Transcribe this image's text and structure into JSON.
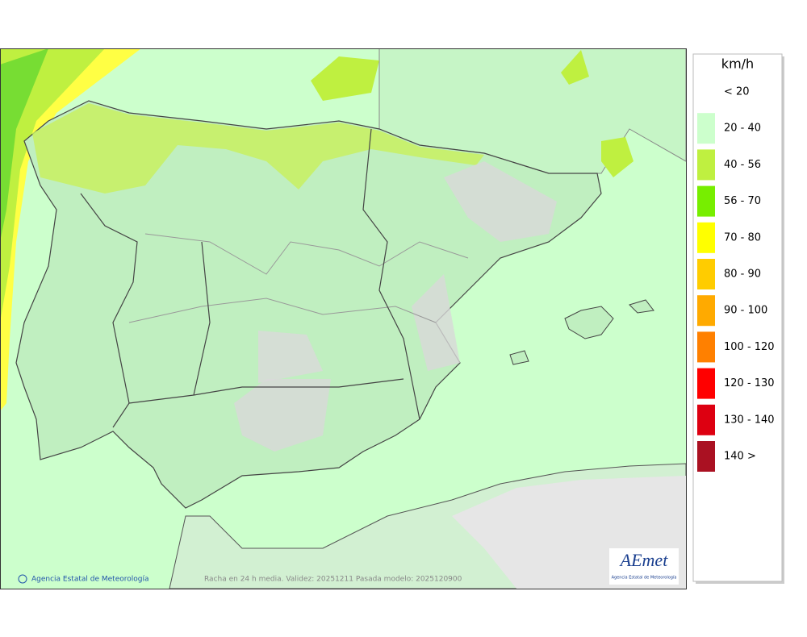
{
  "legend": {
    "unit": "km/h",
    "classes": [
      {
        "label": "< 20",
        "color": "#ffffff"
      },
      {
        "label": "20 - 40",
        "color": "#ccffcc"
      },
      {
        "label": "40 - 56",
        "color": "#bff040"
      },
      {
        "label": "56 - 70",
        "color": "#77ee00"
      },
      {
        "label": "70 - 80",
        "color": "#ffff00"
      },
      {
        "label": "80 - 90",
        "color": "#ffcc00"
      },
      {
        "label": "90 - 100",
        "color": "#ffaa00"
      },
      {
        "label": "100 - 120",
        "color": "#ff8000"
      },
      {
        "label": "120 - 130",
        "color": "#ff0000"
      },
      {
        "label": "130 - 140",
        "color": "#dd0011"
      },
      {
        "label": "140 >",
        "color": "#aa1122"
      }
    ]
  },
  "footer": {
    "credit": "Agencia Estatal de Meteorología",
    "caption": "Racha en 24 h media. Validez: 20251211 Pasada modelo: 2025120900"
  },
  "logo": {
    "name": "AEmet",
    "subtitle": "Agencia Estatal de Meteorología"
  }
}
